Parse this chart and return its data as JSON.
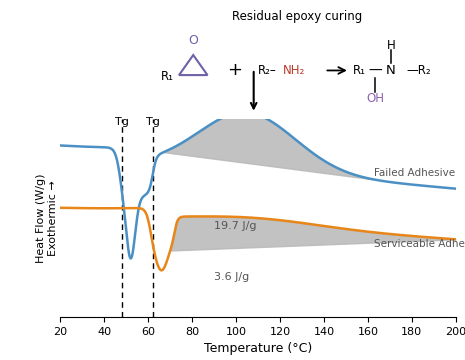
{
  "x_min": 20,
  "x_max": 200,
  "xlabel": "Temperature (°C)",
  "ylabel": "Heat Flow (W/g)\nExothermic →",
  "tg_failed": 48,
  "tg_serviceable": 62,
  "failed_label": "Failed Adhesive",
  "serviceable_label": "Serviceable Adhesive",
  "failed_energy_label": "19.7 J/g",
  "serviceable_energy_label": "3.6 J/g",
  "failed_color": "#4a90c4",
  "serviceable_color": "#e8861a",
  "fill_color": "#b8b8b8",
  "annotation_title": "Residual epoxy curing",
  "xticks": [
    20,
    40,
    60,
    80,
    100,
    120,
    140,
    160,
    180,
    200
  ],
  "bg_color": "#ffffff",
  "epoxide_color": "#7060a8",
  "amine_color": "#c0392b",
  "oh_color": "#9060b0"
}
